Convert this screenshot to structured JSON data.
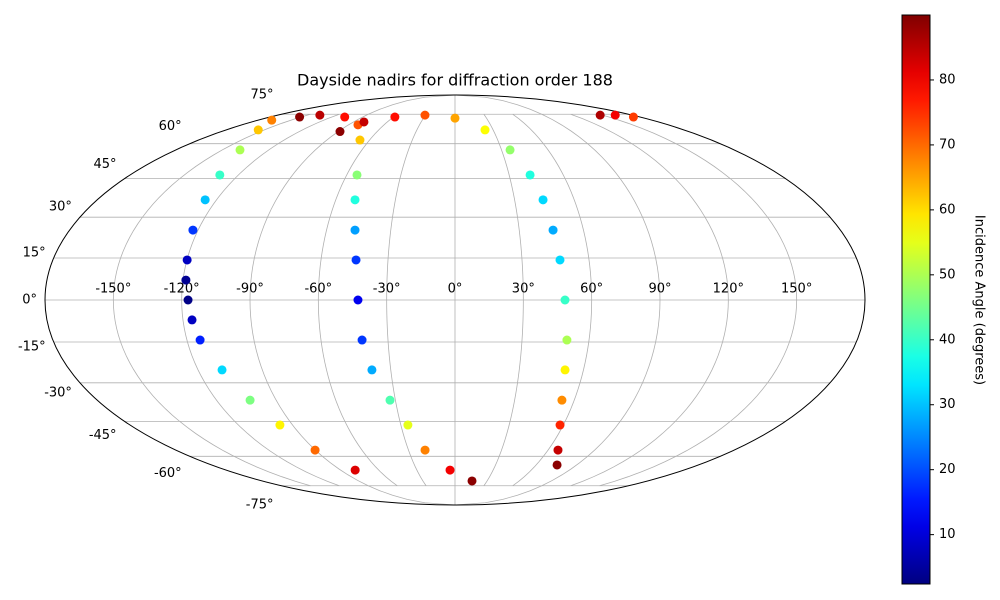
{
  "chart_data": {
    "type": "scatter",
    "projection": "mollweide",
    "title": "Dayside nadirs for diffraction order 188",
    "grid": true,
    "xlim": [
      -180,
      180
    ],
    "ylim": [
      -90,
      90
    ],
    "xticks": [
      {
        "value": -150,
        "label": "-150°"
      },
      {
        "value": -120,
        "label": "-120°"
      },
      {
        "value": -90,
        "label": "-90°"
      },
      {
        "value": -60,
        "label": "-60°"
      },
      {
        "value": -30,
        "label": "-30°"
      },
      {
        "value": 0,
        "label": "0°"
      },
      {
        "value": 30,
        "label": "30°"
      },
      {
        "value": 60,
        "label": "60°"
      },
      {
        "value": 90,
        "label": "90°"
      },
      {
        "value": 120,
        "label": "120°"
      },
      {
        "value": 150,
        "label": "150°"
      }
    ],
    "yticks": [
      {
        "value": 75,
        "label": "75°"
      },
      {
        "value": 60,
        "label": "60°"
      },
      {
        "value": 45,
        "label": "45°"
      },
      {
        "value": 30,
        "label": "30°"
      },
      {
        "value": 15,
        "label": "15°"
      },
      {
        "value": 0,
        "label": "0°"
      },
      {
        "value": -15,
        "label": "-15°"
      },
      {
        "value": -30,
        "label": "-30°"
      },
      {
        "value": -45,
        "label": "-45°"
      },
      {
        "value": -60,
        "label": "-60°"
      },
      {
        "value": -75,
        "label": "-75°"
      }
    ],
    "colorbar": {
      "label": "Incidence Angle (degrees)",
      "colormap": "jet",
      "lim": [
        2.4,
        90
      ],
      "ticks": [
        10,
        20,
        30,
        40,
        50,
        60,
        70,
        80
      ]
    },
    "series": [
      {
        "x": [
          -167.7,
          -154.7,
          -138.6,
          -130.3,
          -125.7,
          -122.4,
          -119.9,
          -118.7,
          -117.2,
          -116.0,
          -114.1,
          -108.8,
          -103.1,
          -97.0,
          -90.2,
          -78.5
        ],
        "y": [
          71.7,
          66.6,
          57.2,
          46.5,
          36.6,
          25.2,
          14.3,
          7.1,
          0,
          -7.1,
          -14.3,
          -25.2,
          -36.6,
          -46.5,
          -57.2,
          -66.6
        ],
        "values": [
          68,
          62,
          50,
          40,
          30,
          18,
          8,
          4,
          3,
          8,
          16,
          32,
          46,
          58,
          70,
          82
        ]
      },
      {
        "x": [
          -151.2,
          -137.3,
          -107.3,
          -82.0,
          -66.7,
          -54.3,
          -50.3,
          -46.7,
          -44.3,
          -42.6,
          -41.6,
          -38.8,
          -32.7,
          -26.1,
          -19.3,
          -3.9,
          15.9
        ],
        "y": [
          73.4,
          74.5,
          73.4,
          69.2,
          61.7,
          46.5,
          36.6,
          25.2,
          14.3,
          0,
          -14.3,
          -25.2,
          -36.6,
          -46.5,
          -57.2,
          -66.6,
          -72.3
        ],
        "values": [
          89,
          85,
          78,
          72,
          62,
          47,
          38,
          27,
          18,
          12,
          18,
          28,
          42,
          55,
          68,
          80,
          89
        ]
      },
      {
        "x": [
          -88.6,
          -80.6,
          -58.5,
          -30.5,
          0,
          23.6,
          35.5,
          41.6,
          44.3,
          45.8,
          47.0,
          48.3,
          50.1,
          51.4,
          53.8,
          58.2,
          66.4,
          75.5
        ],
        "y": [
          65.8,
          70.7,
          73.4,
          74.5,
          72.8,
          66.6,
          57.2,
          46.5,
          36.6,
          25.2,
          14.3,
          0,
          -14.3,
          -25.2,
          -36.6,
          -46.5,
          -57.2,
          -64.1
        ],
        "values": [
          89,
          84,
          78,
          72,
          65,
          57,
          48,
          38,
          32,
          28,
          32,
          40,
          50,
          58,
          67,
          76,
          84,
          89
        ]
      },
      {
        "x": [
          147.5,
          162.8,
          173.6
        ],
        "y": [
          74.5,
          74.5,
          73.4
        ],
        "values": [
          86,
          80,
          74
        ]
      }
    ]
  }
}
